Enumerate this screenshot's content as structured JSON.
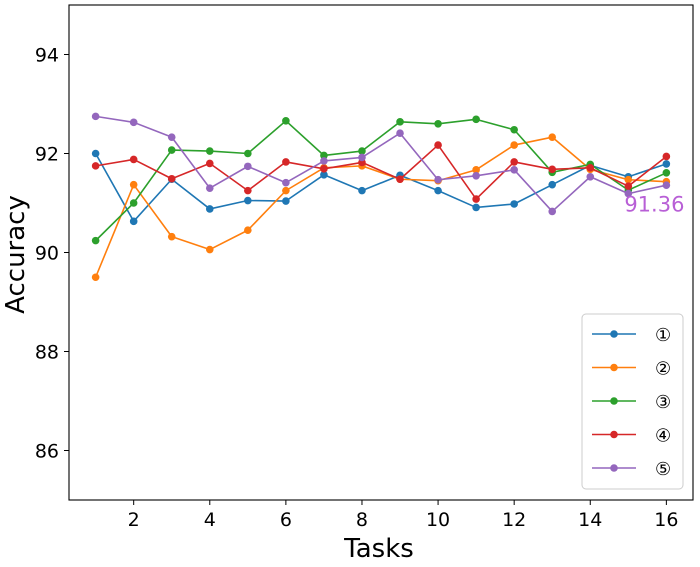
{
  "chart_data": {
    "type": "line",
    "title": "",
    "xlabel": "Tasks",
    "ylabel": "Accuracy",
    "xlim": [
      0.3,
      16.7
    ],
    "ylim": [
      85.0,
      95.0
    ],
    "xticks": [
      2,
      4,
      6,
      8,
      10,
      12,
      14,
      16
    ],
    "yticks": [
      86,
      88,
      90,
      92,
      94
    ],
    "x": [
      1,
      2,
      3,
      4,
      5,
      6,
      7,
      8,
      9,
      10,
      11,
      12,
      13,
      14,
      15,
      16
    ],
    "legend_position": "bottom-right",
    "series": [
      {
        "name": "①",
        "color": "#1f77b4",
        "values": [
          92.0,
          90.63,
          91.48,
          90.88,
          91.05,
          91.04,
          91.57,
          91.25,
          91.56,
          91.25,
          90.91,
          90.98,
          91.37,
          91.76,
          91.53,
          91.79
        ]
      },
      {
        "name": "②",
        "color": "#ff7f0e",
        "values": [
          89.5,
          91.37,
          90.32,
          90.06,
          90.45,
          91.25,
          91.71,
          91.75,
          91.48,
          91.45,
          91.67,
          92.17,
          92.33,
          91.68,
          91.47,
          91.43
        ]
      },
      {
        "name": "③",
        "color": "#2ca02c",
        "values": [
          90.24,
          91.0,
          92.07,
          92.05,
          92.0,
          92.66,
          91.96,
          92.05,
          92.64,
          92.6,
          92.69,
          92.48,
          91.62,
          91.78,
          91.26,
          91.61
        ]
      },
      {
        "name": "④",
        "color": "#d62728",
        "values": [
          91.75,
          91.88,
          91.49,
          91.8,
          91.25,
          91.83,
          91.69,
          91.82,
          91.48,
          92.17,
          91.08,
          91.83,
          91.68,
          91.71,
          91.34,
          91.94
        ]
      },
      {
        "name": "⑤",
        "color": "#9467bd",
        "values": [
          92.75,
          92.63,
          92.33,
          91.3,
          91.74,
          91.41,
          91.85,
          91.92,
          92.41,
          91.47,
          91.55,
          91.67,
          90.83,
          91.53,
          91.19,
          91.36
        ]
      }
    ],
    "annotations": [
      {
        "text": "91.36",
        "x": 15,
        "y": 90.95,
        "color": "#b85fd6"
      }
    ]
  }
}
